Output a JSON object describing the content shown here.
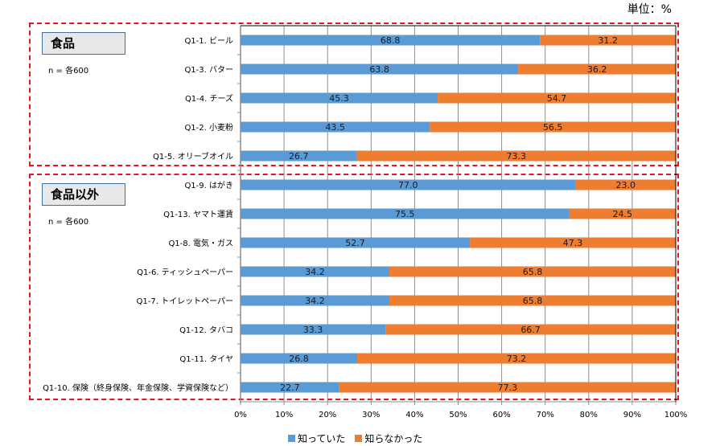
{
  "unit_label": "単位：%",
  "groups": [
    {
      "title": "食品",
      "n_label": "n = 各600"
    },
    {
      "title": "食品以外",
      "n_label": "n = 各600"
    }
  ],
  "chart_data": {
    "type": "bar",
    "orientation": "horizontal",
    "stacked": "percent",
    "title": "",
    "xlabel": "",
    "ylabel": "",
    "xlim": [
      0,
      100
    ],
    "x_ticks": [
      "0%",
      "10%",
      "20%",
      "30%",
      "40%",
      "50%",
      "60%",
      "70%",
      "80%",
      "90%",
      "100%"
    ],
    "grid": true,
    "legend_position": "bottom",
    "categories": [
      "Q1-1. ビール",
      "Q1-3. バター",
      "Q1-4. チーズ",
      "Q1-2. 小麦粉",
      "Q1-5. オリーブオイル",
      "Q1-9. はがき",
      "Q1-13. ヤマト運賃",
      "Q1-8. 電気・ガス",
      "Q1-6. ティッシュペーパー",
      "Q1-7. トイレットペーパー",
      "Q1-12. タバコ",
      "Q1-11. タイヤ",
      "Q1-10. 保険（終身保険、年金保険、学資保険など）"
    ],
    "category_groups": [
      "食品",
      "食品",
      "食品",
      "食品",
      "食品",
      "食品以外",
      "食品以外",
      "食品以外",
      "食品以外",
      "食品以外",
      "食品以外",
      "食品以外",
      "食品以外"
    ],
    "series": [
      {
        "name": "知っていた",
        "color": "#5b9bd5",
        "values": [
          68.8,
          63.8,
          45.3,
          43.5,
          26.7,
          77.0,
          75.5,
          52.7,
          34.2,
          34.2,
          33.3,
          26.8,
          22.7
        ]
      },
      {
        "name": "知らなかった",
        "color": "#ed7d31",
        "values": [
          31.2,
          36.2,
          54.7,
          56.5,
          73.3,
          23.0,
          24.5,
          47.3,
          65.8,
          65.8,
          66.7,
          73.2,
          77.3
        ]
      }
    ]
  }
}
